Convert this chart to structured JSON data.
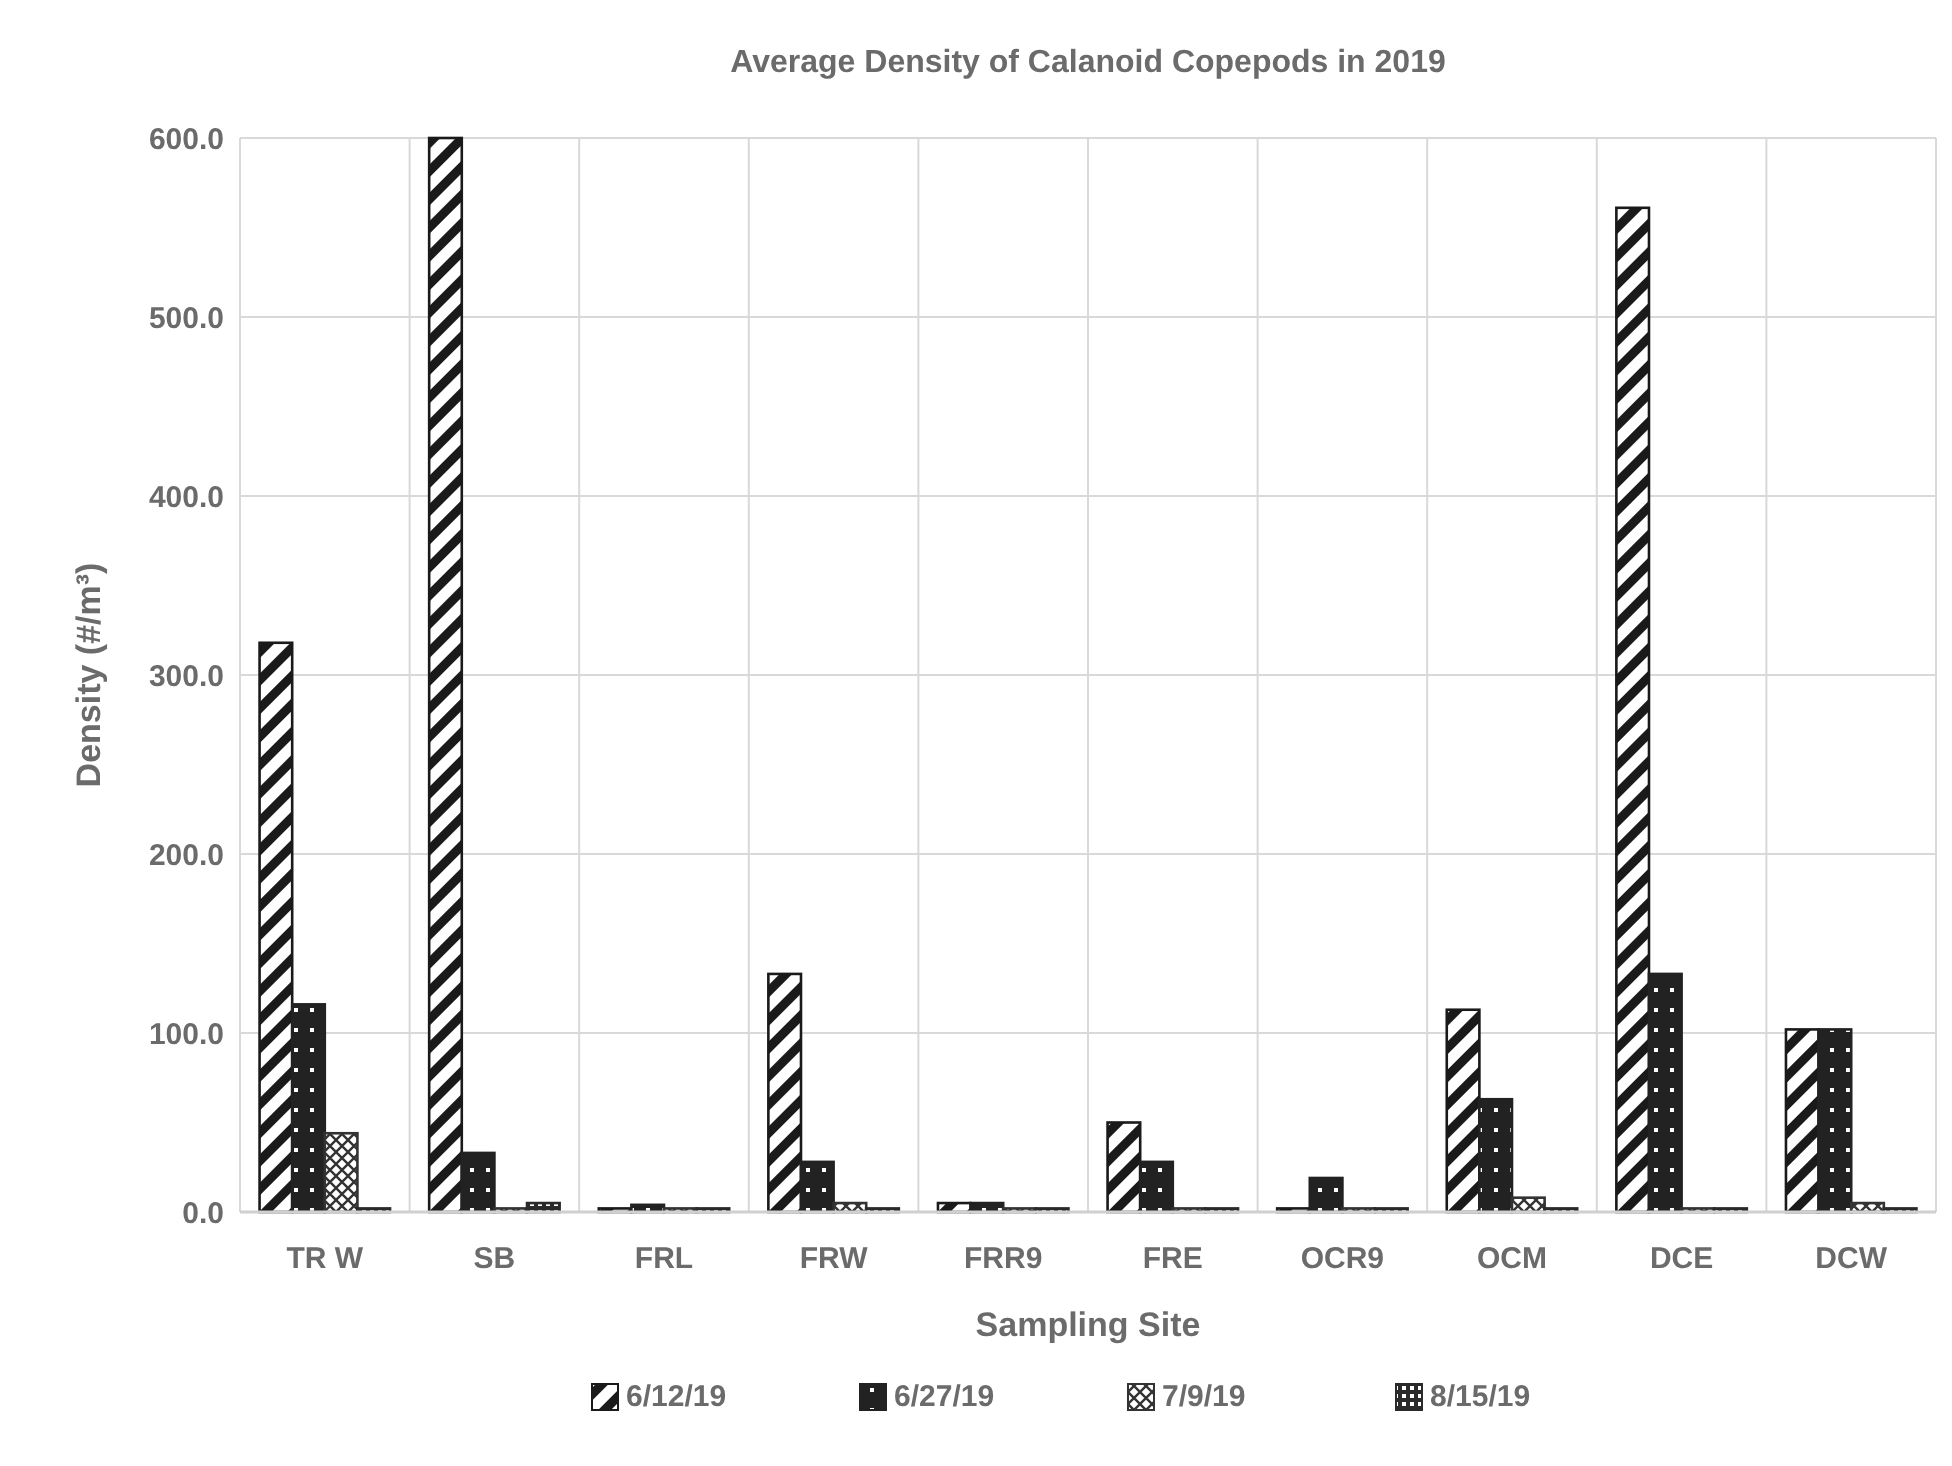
{
  "chart_data": {
    "type": "bar",
    "title": "Average Density of Calanoid Copepods in 2019",
    "xlabel": "Sampling Site",
    "ylabel": "Density (#/m³)",
    "categories": [
      "TR W",
      "SB",
      "FRL",
      "FRW",
      "FRR9",
      "FRE",
      "OCR9",
      "OCM",
      "DCE",
      "DCW"
    ],
    "series": [
      {
        "name": "6/12/19",
        "color": "#1a1a1a",
        "values": [
          318,
          600,
          2,
          133,
          5,
          50,
          2,
          113,
          561,
          102
        ]
      },
      {
        "name": "6/27/19",
        "color": "#222222",
        "values": [
          116,
          33,
          4,
          28,
          5,
          28,
          19,
          63,
          133,
          102
        ]
      },
      {
        "name": "7/9/19",
        "color": "#333333",
        "values": [
          44,
          2,
          2,
          5,
          2,
          2,
          2,
          8,
          2,
          5
        ]
      },
      {
        "name": "8/15/19",
        "color": "#2a2a2a",
        "values": [
          2,
          5,
          2,
          2,
          2,
          2,
          2,
          2,
          2,
          2
        ]
      }
    ],
    "ylim": [
      0,
      600
    ],
    "yticks": [
      {
        "value": 0,
        "label": "0.0"
      },
      {
        "value": 100,
        "label": "100.0"
      },
      {
        "value": 200,
        "label": "200.0"
      },
      {
        "value": 300,
        "label": "300.0"
      },
      {
        "value": 400,
        "label": "400.0"
      },
      {
        "value": 500,
        "label": "500.0"
      },
      {
        "value": 600,
        "label": "600.0"
      }
    ],
    "grid": true,
    "legend": "bottom"
  }
}
